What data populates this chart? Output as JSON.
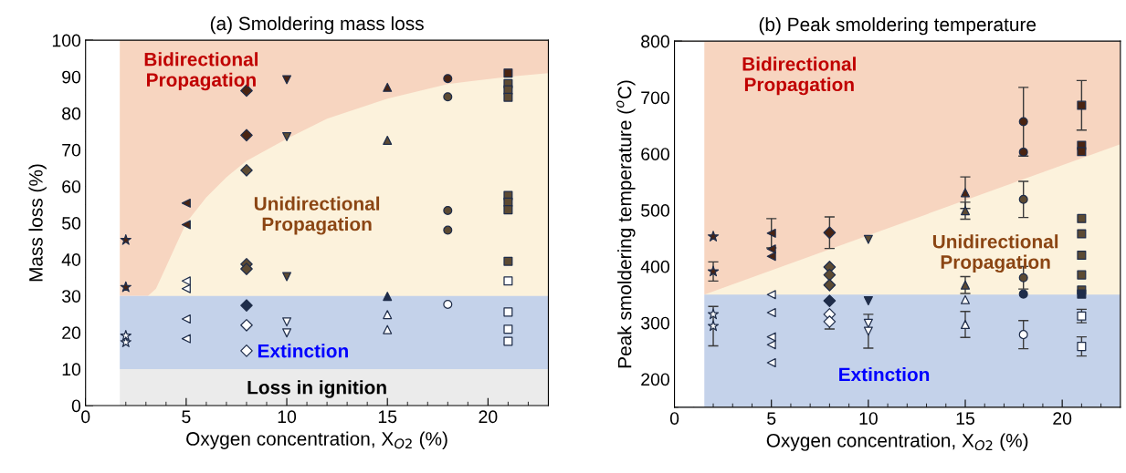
{
  "chart_data": [
    {
      "type": "scatter",
      "title": "(a) Smoldering mass loss",
      "xlabel": "Oxygen concentration, X$_{O2}$ (%)",
      "ylabel": "Mass loss (%)",
      "xlim": [
        0,
        23
      ],
      "ylim": [
        0,
        100
      ],
      "xticks": [
        0,
        {
          "value": 1,
          "label": null
        },
        {
          "value": 2,
          "label": null
        },
        {
          "value": 3,
          "label": null
        },
        {
          "value": 4,
          "label": null
        },
        5,
        {
          "value": 6,
          "label": null
        },
        {
          "value": 7,
          "label": null
        },
        {
          "value": 8,
          "label": null
        },
        {
          "value": 9,
          "label": null
        },
        10,
        {
          "value": 11,
          "label": null
        },
        {
          "value": 12,
          "label": null
        },
        {
          "value": 13,
          "label": null
        },
        {
          "value": 14,
          "label": null
        },
        15,
        {
          "value": 16,
          "label": null
        },
        {
          "value": 17,
          "label": null
        },
        {
          "value": 18,
          "label": null
        },
        {
          "value": 19,
          "label": null
        },
        20,
        {
          "value": 21,
          "label": null
        },
        {
          "value": 22,
          "label": null
        }
      ],
      "yticks": [
        0,
        {
          "value": 5,
          "label": null
        },
        10,
        {
          "value": 15,
          "label": null
        },
        20,
        {
          "value": 25,
          "label": null
        },
        30,
        {
          "value": 35,
          "label": null
        },
        40,
        {
          "value": 45,
          "label": null
        },
        50,
        {
          "value": 55,
          "label": null
        },
        60,
        {
          "value": 65,
          "label": null
        },
        70,
        {
          "value": 75,
          "label": null
        },
        80,
        {
          "value": 85,
          "label": null
        },
        90,
        {
          "value": 95,
          "label": null
        },
        100
      ],
      "grid": false,
      "legend": false,
      "bands": [
        {
          "axis": "y",
          "from": 30,
          "to": 100,
          "label": "Bidirectional\nPropagation",
          "color": "#f7d5c0"
        },
        {
          "axis": "y",
          "from": 10,
          "to": 30,
          "label": "Extinction",
          "color": "#c4d2ea"
        },
        {
          "axis": "y",
          "from": 0,
          "to": 10,
          "label": "Loss in ignition",
          "color": "#ebebeb"
        },
        {
          "axis": "x",
          "from": 0,
          "to": 1.7,
          "color": "#ffffff"
        }
      ],
      "series": [
        {
          "type": "area",
          "name": "Unidirectional\nPropagation",
          "color": "#fcf2dc",
          "x": [
            3.1,
            3.5,
            4,
            4.5,
            5,
            6,
            7,
            8,
            10,
            12,
            15,
            18,
            21,
            23
          ],
          "values": [
            30,
            32,
            38,
            44,
            50,
            57,
            62.5,
            67,
            73,
            78.5,
            84,
            88,
            90,
            91
          ]
        },
        {
          "marker": "star",
          "x": [
            2,
            2,
            2,
            2
          ],
          "values": [
            45.3,
            32.4,
            19.1,
            17.3
          ],
          "colors": [
            "#4a2412",
            "#4a2412",
            "#ffffff",
            "#ffffff"
          ]
        },
        {
          "marker": "triangle-left",
          "x": [
            5,
            5,
            5,
            5,
            5,
            5
          ],
          "values": [
            55.4,
            49.5,
            34.1,
            32,
            23.7,
            18.3
          ],
          "colors": [
            "#4a2412",
            "#4a2412",
            "#ffffff",
            "#ffffff",
            "#ffffff",
            "#ffffff"
          ]
        },
        {
          "marker": "diamond",
          "x": [
            8,
            8,
            8,
            8,
            8,
            8,
            8,
            8
          ],
          "values": [
            86.2,
            74,
            64.4,
            38.7,
            37.4,
            27.4,
            22,
            15
          ],
          "colors": [
            "#4a2412",
            "#4a2412",
            "#5c4a32",
            "#5c4a32",
            "#5c4a32",
            "#1f2d4a",
            "#ffffff",
            "#ffffff"
          ]
        },
        {
          "marker": "triangle-down",
          "x": [
            10,
            10,
            10,
            10,
            10
          ],
          "values": [
            89.2,
            73.6,
            35.3,
            22.9,
            19.9
          ],
          "colors": [
            "#4a2412",
            "#5c4a32",
            "#5c4a32",
            "#ffffff",
            "#ffffff"
          ]
        },
        {
          "marker": "triangle",
          "x": [
            15,
            15,
            15,
            15,
            15
          ],
          "values": [
            87.1,
            72.6,
            29.9,
            24.9,
            20.8
          ],
          "colors": [
            "#4a2412",
            "#5c4a32",
            "#1f2d4a",
            "#ffffff",
            "#ffffff"
          ]
        },
        {
          "marker": "circle",
          "x": [
            18,
            18,
            18,
            18,
            18
          ],
          "values": [
            89.5,
            84.5,
            53.4,
            48,
            27.7
          ],
          "colors": [
            "#4a2412",
            "#5c4a32",
            "#5c4a32",
            "#5c4a32",
            "#ffffff"
          ]
        },
        {
          "marker": "square",
          "x": [
            21,
            21,
            21,
            21,
            21,
            21,
            21,
            21,
            21,
            21,
            21,
            21
          ],
          "values": [
            91,
            88.1,
            86.4,
            84.4,
            57.5,
            55.7,
            53.6,
            39.5,
            34.1,
            25.6,
            20.9,
            17.6
          ],
          "colors": [
            "#4a2412",
            "#5c4a32",
            "#5c4a32",
            "#5c4a32",
            "#5c4a32",
            "#5c4a32",
            "#5c4a32",
            "#5c4a32",
            "#ffffff",
            "#ffffff",
            "#ffffff",
            "#ffffff"
          ]
        }
      ]
    },
    {
      "type": "scatter",
      "title": "(b) Peak smoldering temperature",
      "xlabel": "Oxygen concentration, X$_{O2}$ (%)",
      "ylabel": "Peak smoldering temperature ($^{o}$C)",
      "xlim": [
        0,
        23
      ],
      "ylim": [
        150,
        800
      ],
      "xticks": [
        0,
        {
          "value": 1,
          "label": null
        },
        {
          "value": 2,
          "label": null
        },
        {
          "value": 3,
          "label": null
        },
        {
          "value": 4,
          "label": null
        },
        5,
        {
          "value": 6,
          "label": null
        },
        {
          "value": 7,
          "label": null
        },
        {
          "value": 8,
          "label": null
        },
        {
          "value": 9,
          "label": null
        },
        10,
        {
          "value": 11,
          "label": null
        },
        {
          "value": 12,
          "label": null
        },
        {
          "value": 13,
          "label": null
        },
        {
          "value": 14,
          "label": null
        },
        15,
        {
          "value": 16,
          "label": null
        },
        {
          "value": 17,
          "label": null
        },
        {
          "value": 18,
          "label": null
        },
        {
          "value": 19,
          "label": null
        },
        20,
        {
          "value": 21,
          "label": null
        },
        {
          "value": 22,
          "label": null
        }
      ],
      "yticks": [
        {
          "value": 150,
          "label": null
        },
        200,
        {
          "value": 250,
          "label": null
        },
        300,
        {
          "value": 350,
          "label": null
        },
        400,
        {
          "value": 450,
          "label": null
        },
        500,
        {
          "value": 550,
          "label": null
        },
        600,
        {
          "value": 650,
          "label": null
        },
        700,
        {
          "value": 750,
          "label": null
        },
        800
      ],
      "grid": false,
      "legend": false,
      "bands": [
        {
          "axis": "y",
          "from": 350,
          "to": 800,
          "label": "Bidirectional\nPropagation",
          "color": "#f7d5c0"
        },
        {
          "axis": "y",
          "from": 150,
          "to": 350,
          "label": "Extinction",
          "color": "#c4d2ea"
        },
        {
          "axis": "x",
          "from": 0,
          "to": 1.54,
          "color": "#ffffff"
        }
      ],
      "series": [
        {
          "type": "area",
          "name": "Unidirectional\nPropagation",
          "color": "#fcf2dc",
          "x": [
            1.54,
            23
          ],
          "values": [
            350,
            617
          ]
        },
        {
          "marker": "star",
          "x": [
            2,
            2,
            2,
            2
          ],
          "values": [
            453,
            391,
            315,
            294
          ],
          "errors": [
            null,
            17,
            null,
            35
          ],
          "colors": [
            "#4a2412",
            "#4a2412",
            "#ffffff",
            "#ffffff"
          ]
        },
        {
          "marker": "triangle-left",
          "x": [
            5,
            5,
            5,
            5,
            5,
            5,
            5,
            5
          ],
          "values": [
            459,
            431,
            418,
            350,
            318,
            275,
            261,
            229
          ],
          "errors": [
            26,
            null,
            null,
            null,
            null,
            null,
            null,
            null
          ],
          "colors": [
            "#4a2412",
            "#4a2412",
            "#4a2412",
            "#ffffff",
            "#ffffff",
            "#ffffff",
            "#ffffff",
            "#ffffff"
          ]
        },
        {
          "marker": "diamond",
          "x": [
            8,
            8,
            8,
            8,
            8,
            8,
            8
          ],
          "values": [
            460,
            399,
            385,
            367,
            339,
            315,
            302
          ],
          "errors": [
            28,
            null,
            null,
            null,
            null,
            null,
            13
          ],
          "colors": [
            "#4a2412",
            "#5c4a32",
            "#5c4a32",
            "#5c4a32",
            "#1f2d4a",
            "#ffffff",
            "#ffffff"
          ]
        },
        {
          "marker": "triangle-down",
          "x": [
            10,
            10,
            10,
            10
          ],
          "values": [
            448,
            339,
            299,
            285
          ],
          "errors": [
            null,
            null,
            null,
            30
          ],
          "colors": [
            "#5c4a32",
            "#1f2d4a",
            "#ffffff",
            "#ffffff"
          ]
        },
        {
          "marker": "triangle",
          "x": [
            15,
            15,
            15,
            15,
            15
          ],
          "values": [
            531,
            499,
            367,
            341,
            297
          ],
          "errors": [
            28,
            15,
            15,
            null,
            23
          ],
          "colors": [
            "#4a2412",
            "#5c4a32",
            "#5c4a32",
            "#ffffff",
            "#ffffff"
          ]
        },
        {
          "marker": "circle",
          "x": [
            18,
            18,
            18,
            18,
            18,
            18
          ],
          "values": [
            657,
            603,
            519,
            380,
            351,
            279
          ],
          "errors": [
            61,
            null,
            32,
            20,
            null,
            25
          ],
          "colors": [
            "#4a2412",
            "#4a2412",
            "#5c4a32",
            "#5c4a32",
            "#1f2d4a",
            "#ffffff"
          ]
        },
        {
          "marker": "square",
          "x": [
            21,
            21,
            21,
            21,
            21,
            21,
            21,
            21,
            21,
            21,
            21
          ],
          "values": [
            686,
            615,
            604,
            485,
            458,
            420,
            385,
            358,
            351,
            312,
            258
          ],
          "errors": [
            44,
            null,
            null,
            null,
            null,
            null,
            null,
            null,
            null,
            12,
            17
          ],
          "colors": [
            "#4a2412",
            "#4a2412",
            "#4a2412",
            "#5c4a32",
            "#5c4a32",
            "#5c4a32",
            "#5c4a32",
            "#5c4a32",
            "#1f2d4a",
            "#ffffff",
            "#ffffff"
          ]
        }
      ]
    }
  ]
}
